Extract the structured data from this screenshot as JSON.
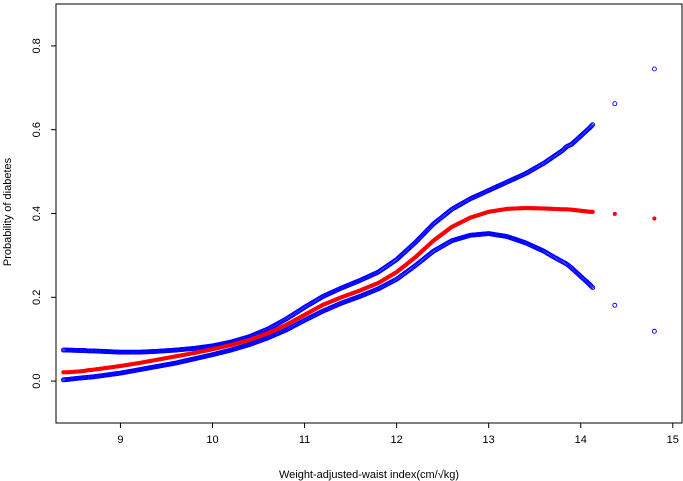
{
  "chart_data": {
    "type": "scatter",
    "title": "",
    "xlabel": "Weight-adjusted-waist index(cm/√kg)",
    "ylabel": "Probability of diabetes",
    "xlim": [
      8.3,
      15.1
    ],
    "ylim": [
      -0.1,
      0.9
    ],
    "xticks": [
      9,
      10,
      11,
      12,
      13,
      14,
      15
    ],
    "yticks": [
      0.0,
      0.2,
      0.4,
      0.6,
      0.8
    ],
    "ytick_labels": [
      "0.0",
      "0.2",
      "0.4",
      "0.6",
      "0.8"
    ],
    "grid": false,
    "legend": "none",
    "series": [
      {
        "role": "upper-bound",
        "color": "#0000ff",
        "marker": "open-circle",
        "x": [
          8.38,
          8.43,
          8.55,
          8.6,
          8.65,
          8.7,
          8.8,
          9.0,
          9.2,
          9.4,
          9.6,
          9.8,
          10.0,
          10.2,
          10.4,
          10.6,
          10.8,
          11.0,
          11.2,
          11.4,
          11.6,
          11.8,
          12.0,
          12.2,
          12.4,
          12.6,
          12.8,
          13.0,
          13.2,
          13.4,
          13.6,
          13.7,
          13.8,
          13.85,
          13.9,
          14.1,
          14.13,
          14.37,
          14.8
        ],
        "y": [
          0.074,
          0.074,
          0.073,
          0.073,
          0.072,
          0.072,
          0.071,
          0.069,
          0.069,
          0.071,
          0.074,
          0.078,
          0.084,
          0.093,
          0.106,
          0.124,
          0.148,
          0.176,
          0.202,
          0.222,
          0.24,
          0.26,
          0.29,
          0.33,
          0.375,
          0.41,
          0.435,
          0.455,
          0.475,
          0.495,
          0.52,
          0.535,
          0.55,
          0.56,
          0.565,
          0.605,
          0.612,
          0.662,
          0.745
        ]
      },
      {
        "role": "estimate",
        "color": "#ff0000",
        "marker": "filled-circle",
        "x": [
          8.38,
          8.43,
          8.55,
          8.6,
          8.65,
          8.7,
          8.8,
          9.0,
          9.2,
          9.4,
          9.6,
          9.8,
          10.0,
          10.2,
          10.4,
          10.6,
          10.8,
          11.0,
          11.2,
          11.4,
          11.6,
          11.8,
          12.0,
          12.2,
          12.4,
          12.6,
          12.8,
          13.0,
          13.2,
          13.4,
          13.6,
          13.7,
          13.8,
          13.85,
          13.9,
          14.1,
          14.13,
          14.37,
          14.8
        ],
        "y": [
          0.021,
          0.021,
          0.023,
          0.024,
          0.026,
          0.027,
          0.03,
          0.036,
          0.043,
          0.051,
          0.059,
          0.067,
          0.076,
          0.086,
          0.098,
          0.114,
          0.134,
          0.158,
          0.182,
          0.2,
          0.216,
          0.234,
          0.26,
          0.295,
          0.335,
          0.368,
          0.39,
          0.404,
          0.411,
          0.413,
          0.412,
          0.411,
          0.41,
          0.41,
          0.409,
          0.404,
          0.404,
          0.399,
          0.388
        ]
      },
      {
        "role": "lower-bound",
        "color": "#0000ff",
        "marker": "open-circle",
        "x": [
          8.38,
          8.43,
          8.55,
          8.6,
          8.65,
          8.7,
          8.8,
          9.0,
          9.2,
          9.4,
          9.6,
          9.8,
          10.0,
          10.2,
          10.4,
          10.6,
          10.8,
          11.0,
          11.2,
          11.4,
          11.6,
          11.8,
          12.0,
          12.2,
          12.4,
          12.6,
          12.8,
          13.0,
          13.2,
          13.4,
          13.6,
          13.7,
          13.8,
          13.85,
          13.9,
          14.1,
          14.13,
          14.37,
          14.8
        ],
        "y": [
          0.003,
          0.004,
          0.007,
          0.008,
          0.009,
          0.01,
          0.013,
          0.019,
          0.027,
          0.035,
          0.043,
          0.053,
          0.063,
          0.074,
          0.087,
          0.103,
          0.122,
          0.145,
          0.167,
          0.186,
          0.202,
          0.22,
          0.243,
          0.275,
          0.31,
          0.335,
          0.348,
          0.352,
          0.345,
          0.33,
          0.31,
          0.297,
          0.285,
          0.279,
          0.27,
          0.23,
          0.223,
          0.181,
          0.119
        ]
      }
    ]
  }
}
